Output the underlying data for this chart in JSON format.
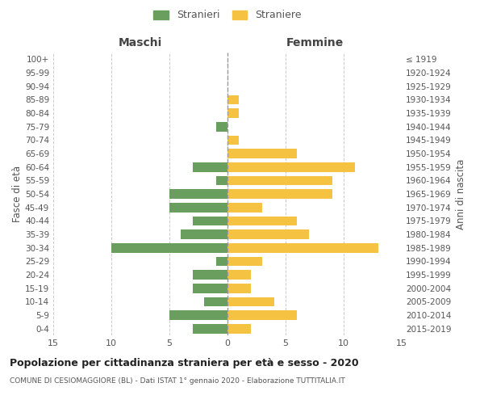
{
  "age_groups": [
    "0-4",
    "5-9",
    "10-14",
    "15-19",
    "20-24",
    "25-29",
    "30-34",
    "35-39",
    "40-44",
    "45-49",
    "50-54",
    "55-59",
    "60-64",
    "65-69",
    "70-74",
    "75-79",
    "80-84",
    "85-89",
    "90-94",
    "95-99",
    "100+"
  ],
  "birth_years": [
    "2015-2019",
    "2010-2014",
    "2005-2009",
    "2000-2004",
    "1995-1999",
    "1990-1994",
    "1985-1989",
    "1980-1984",
    "1975-1979",
    "1970-1974",
    "1965-1969",
    "1960-1964",
    "1955-1959",
    "1950-1954",
    "1945-1949",
    "1940-1944",
    "1935-1939",
    "1930-1934",
    "1925-1929",
    "1920-1924",
    "≤ 1919"
  ],
  "maschi": [
    3,
    5,
    2,
    3,
    3,
    1,
    10,
    4,
    3,
    5,
    5,
    1,
    3,
    0,
    0,
    1,
    0,
    0,
    0,
    0,
    0
  ],
  "femmine": [
    2,
    6,
    4,
    2,
    2,
    3,
    13,
    7,
    6,
    3,
    9,
    9,
    11,
    6,
    1,
    0,
    1,
    1,
    0,
    0,
    0
  ],
  "color_maschi": "#6a9e5e",
  "color_femmine": "#f5c242",
  "title": "Popolazione per cittadinanza straniera per età e sesso - 2020",
  "subtitle": "COMUNE DI CESIOMAGGIORE (BL) - Dati ISTAT 1° gennaio 2020 - Elaborazione TUTTITALIA.IT",
  "xlabel_left": "Maschi",
  "xlabel_right": "Femmine",
  "ylabel_left": "Fasce di età",
  "ylabel_right": "Anni di nascita",
  "legend_maschi": "Stranieri",
  "legend_femmine": "Straniere",
  "xlim": 15,
  "background_color": "#ffffff",
  "grid_color": "#cccccc"
}
